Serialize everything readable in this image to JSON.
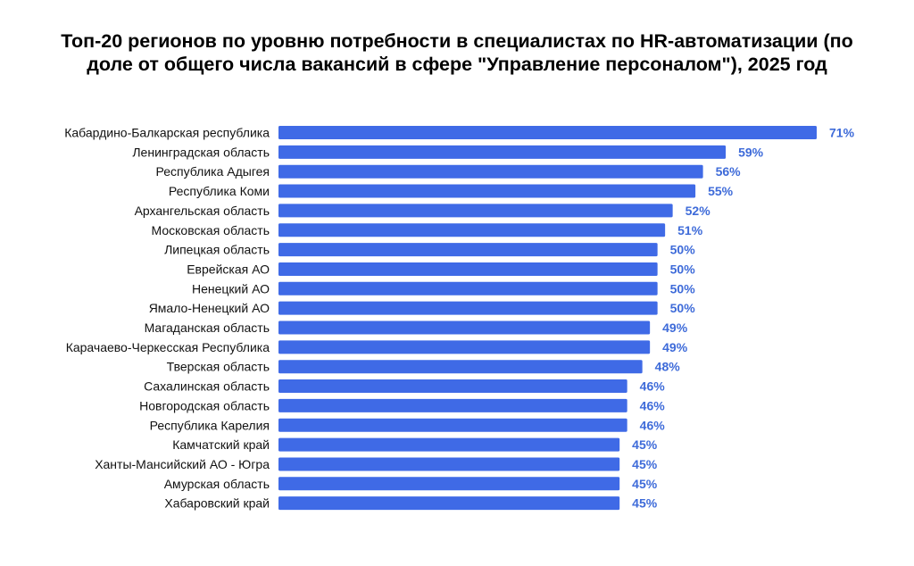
{
  "chart_data": {
    "type": "bar",
    "orientation": "horizontal",
    "title": "Топ-20 регионов по уровню потребности в специалистах по HR-автоматизации (по доле от общего числа вакансий в сфере \"Управление персоналом\"), 2025 год",
    "categories": [
      "Кабардино-Балкарская республика",
      "Ленинградская область",
      "Республика Адыгея",
      "Республика Коми",
      "Архангельская область",
      "Московская область",
      "Липецкая область",
      "Еврейская АО",
      "Ненецкий АО",
      "Ямало-Ненецкий АО",
      "Магаданская область",
      "Карачаево-Черкесская Республика",
      "Тверская область",
      "Сахалинская область",
      "Новгородская область",
      "Республика Карелия",
      "Камчатский край",
      "Ханты-Мансийский АО - Югра",
      "Амурская область",
      "Хабаровский край"
    ],
    "values": [
      71,
      59,
      56,
      55,
      52,
      51,
      50,
      50,
      50,
      50,
      49,
      49,
      48,
      46,
      46,
      46,
      45,
      45,
      45,
      45
    ],
    "value_labels": [
      "71%",
      "59%",
      "56%",
      "55%",
      "52%",
      "51%",
      "50%",
      "50%",
      "50%",
      "50%",
      "49%",
      "49%",
      "48%",
      "46%",
      "46%",
      "46%",
      "45%",
      "45%",
      "45%",
      "45%"
    ],
    "xlim": [
      0,
      71
    ],
    "grid": false,
    "legend": "none",
    "colors": {
      "bar": "#3f6ae6",
      "value_label": "#3e6bd9",
      "category_label": "#111111",
      "title": "#000000"
    }
  }
}
